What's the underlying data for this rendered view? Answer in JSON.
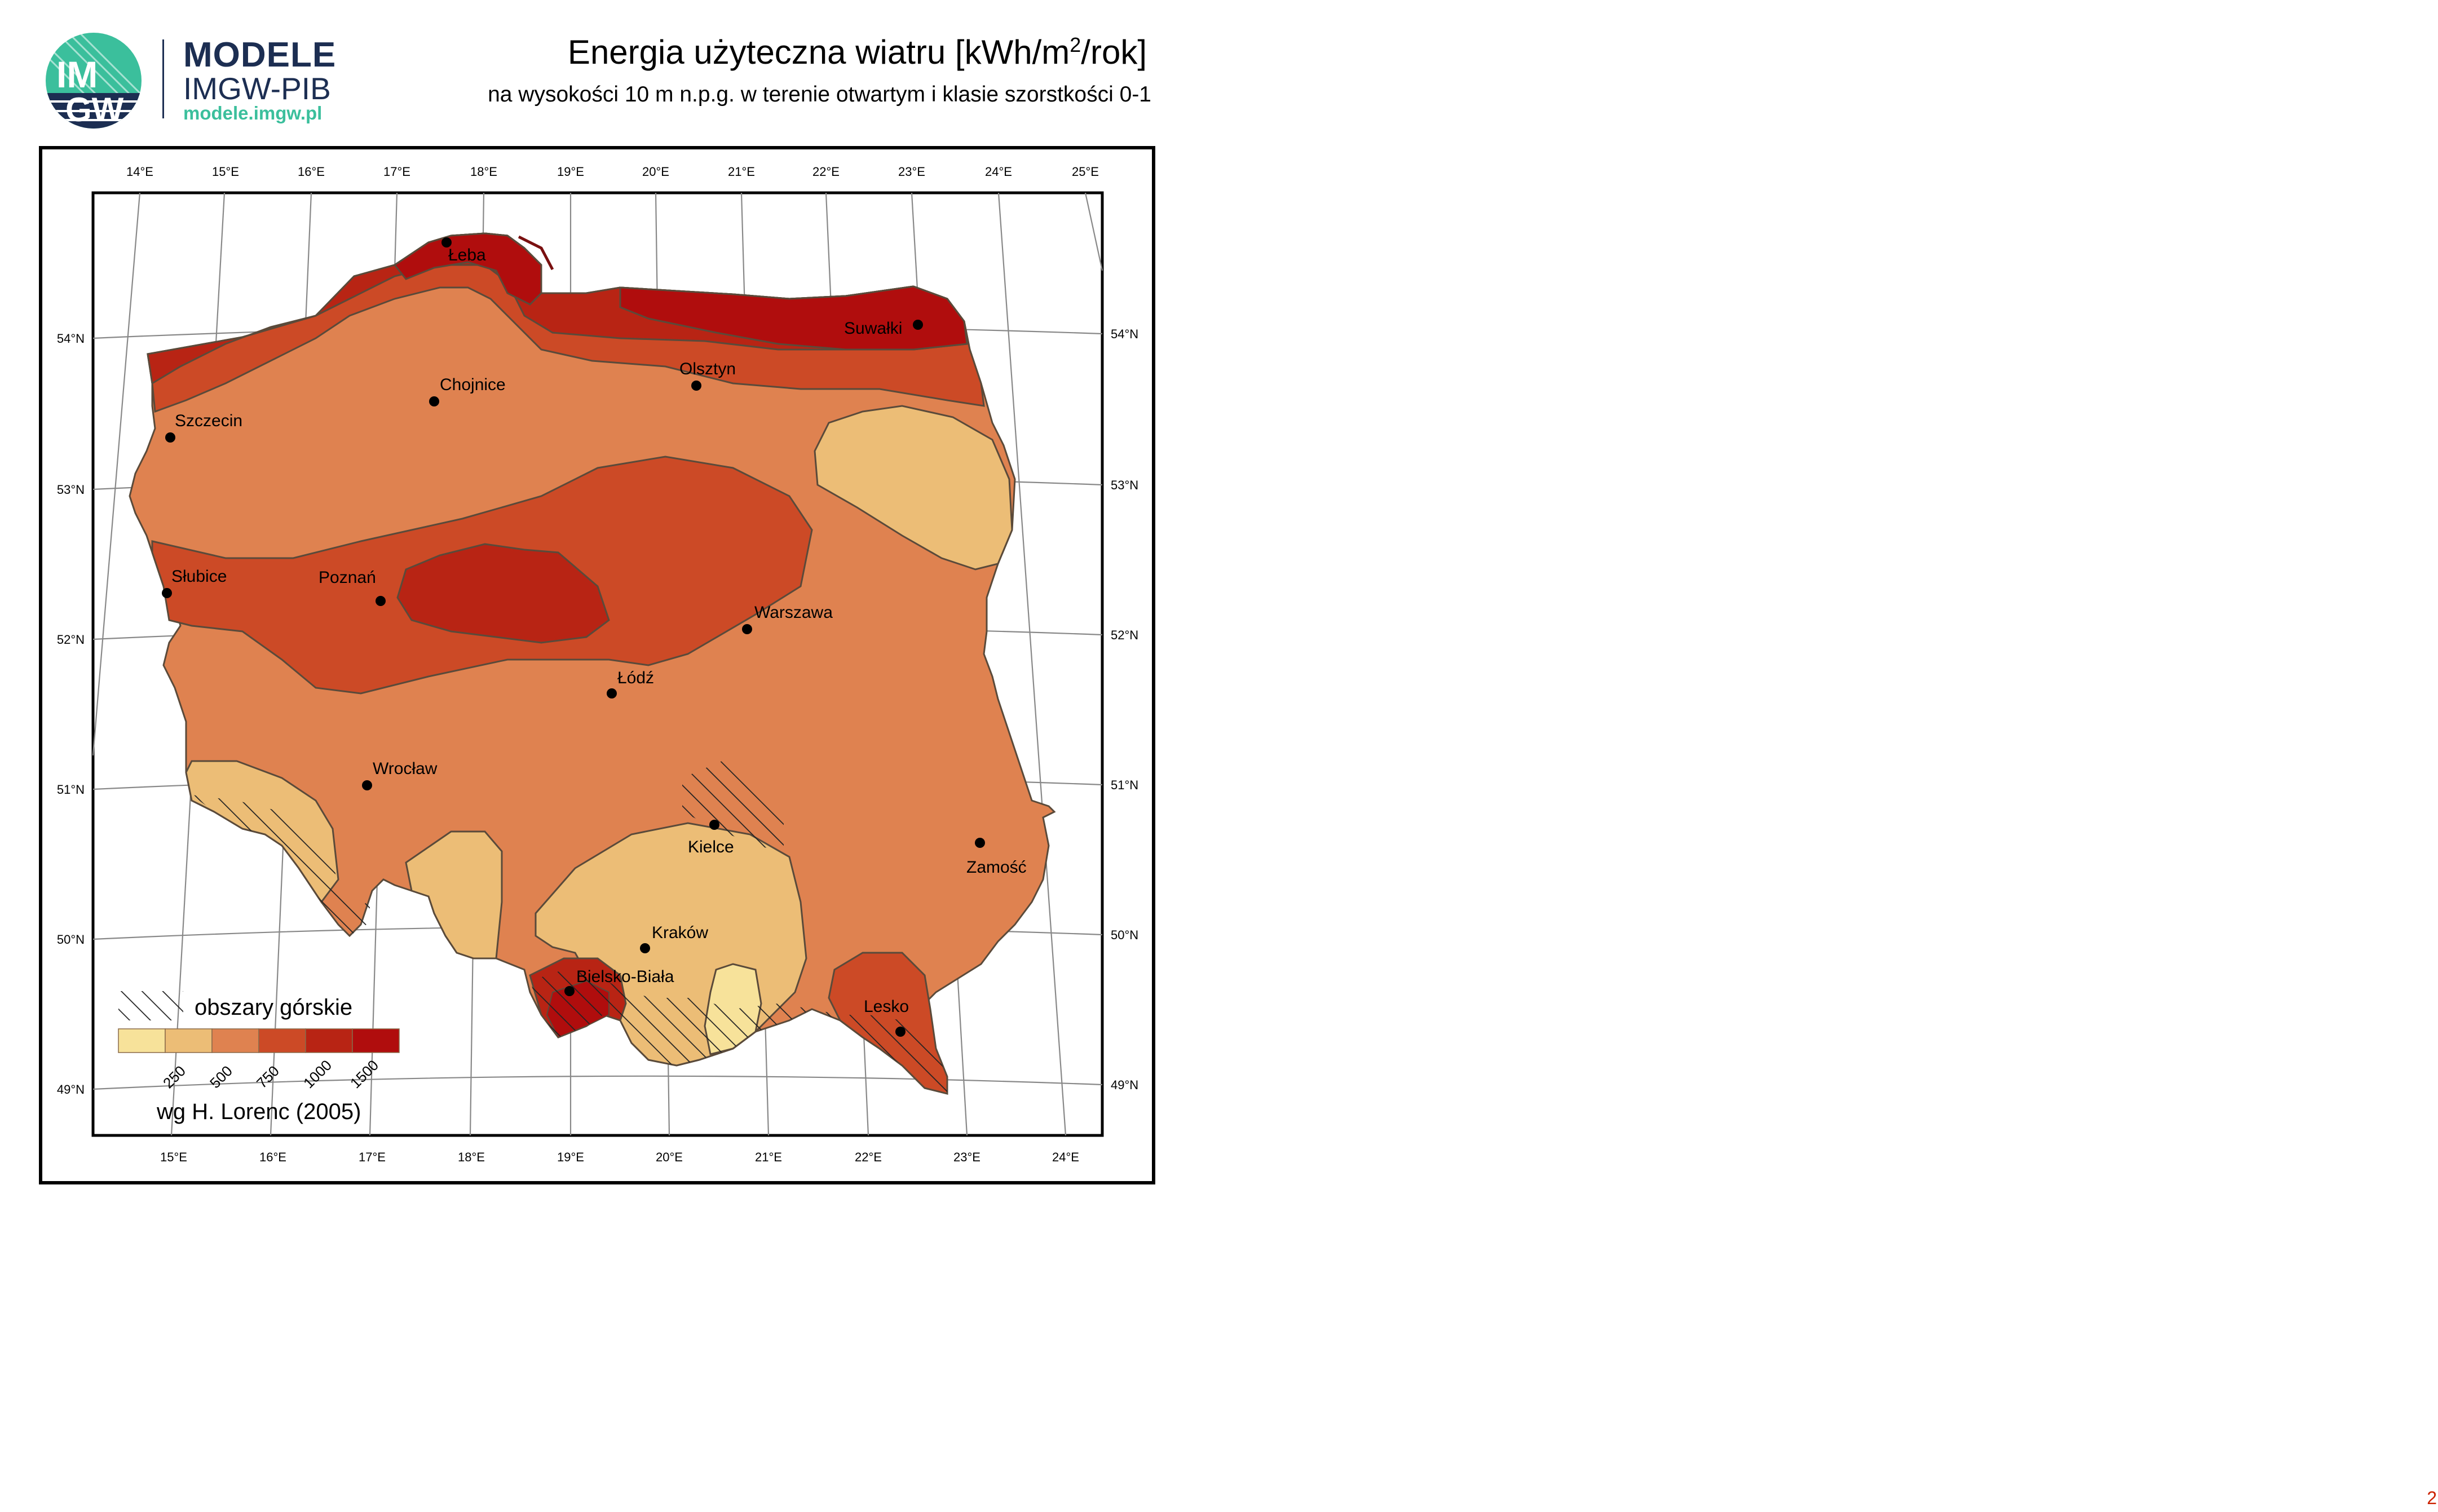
{
  "header": {
    "brand_line1": "MODELE",
    "brand_line2": "IMGW-PIB",
    "brand_url": "modele.imgw.pl",
    "logo_text_top": "IM",
    "logo_text_bottom": "GW",
    "title_main": "Energia użyteczna wiatru [kWh/m",
    "title_sup": "2",
    "title_end": "/rok]",
    "subtitle": "na wysokości 10 m n.p.g. w terenie otwartym i klasie szorstkości 0-1"
  },
  "graticule": {
    "top_lon_labels": [
      "14°E",
      "15°E",
      "16°E",
      "17°E",
      "18°E",
      "19°E",
      "20°E",
      "21°E",
      "22°E",
      "23°E",
      "24°E",
      "25°E"
    ],
    "bottom_lon_labels": [
      "15°E",
      "16°E",
      "17°E",
      "18°E",
      "19°E",
      "20°E",
      "21°E",
      "22°E",
      "23°E",
      "24°E"
    ],
    "lat_labels": [
      "54°N",
      "53°N",
      "52°N",
      "51°N",
      "50°N",
      "49°N"
    ]
  },
  "cities": [
    {
      "name": "Łeba"
    },
    {
      "name": "Suwałki"
    },
    {
      "name": "Chojnice"
    },
    {
      "name": "Olsztyn"
    },
    {
      "name": "Szczecin"
    },
    {
      "name": "Słubice"
    },
    {
      "name": "Poznań"
    },
    {
      "name": "Warszawa"
    },
    {
      "name": "Łódź"
    },
    {
      "name": "Wrocław"
    },
    {
      "name": "Kielce"
    },
    {
      "name": "Zamość"
    },
    {
      "name": "Kraków"
    },
    {
      "name": "Bielsko-Biała"
    },
    {
      "name": "Lesko"
    }
  ],
  "legend": {
    "hatch_label": "obszary górskie",
    "classes": [
      {
        "color": "#f7e29a"
      },
      {
        "color": "#ecbd76"
      },
      {
        "color": "#df8250"
      },
      {
        "color": "#cc4a26"
      },
      {
        "color": "#b82414"
      },
      {
        "color": "#b00d0d"
      }
    ],
    "break_labels": [
      "250",
      "500",
      "750",
      "1000",
      "1500"
    ],
    "credit": "wg H. Lorenc (2005)"
  },
  "colors": {
    "class_250_500": "#ecbd76",
    "class_500_750": "#df8250",
    "class_750_1000": "#cc4a26",
    "class_1000_1500": "#b82414",
    "class_above_1500": "#b00d0d",
    "class_below_250": "#f7e29a",
    "brand_navy": "#1c2e52",
    "brand_teal": "#3bbf9c"
  },
  "page_number": "2"
}
